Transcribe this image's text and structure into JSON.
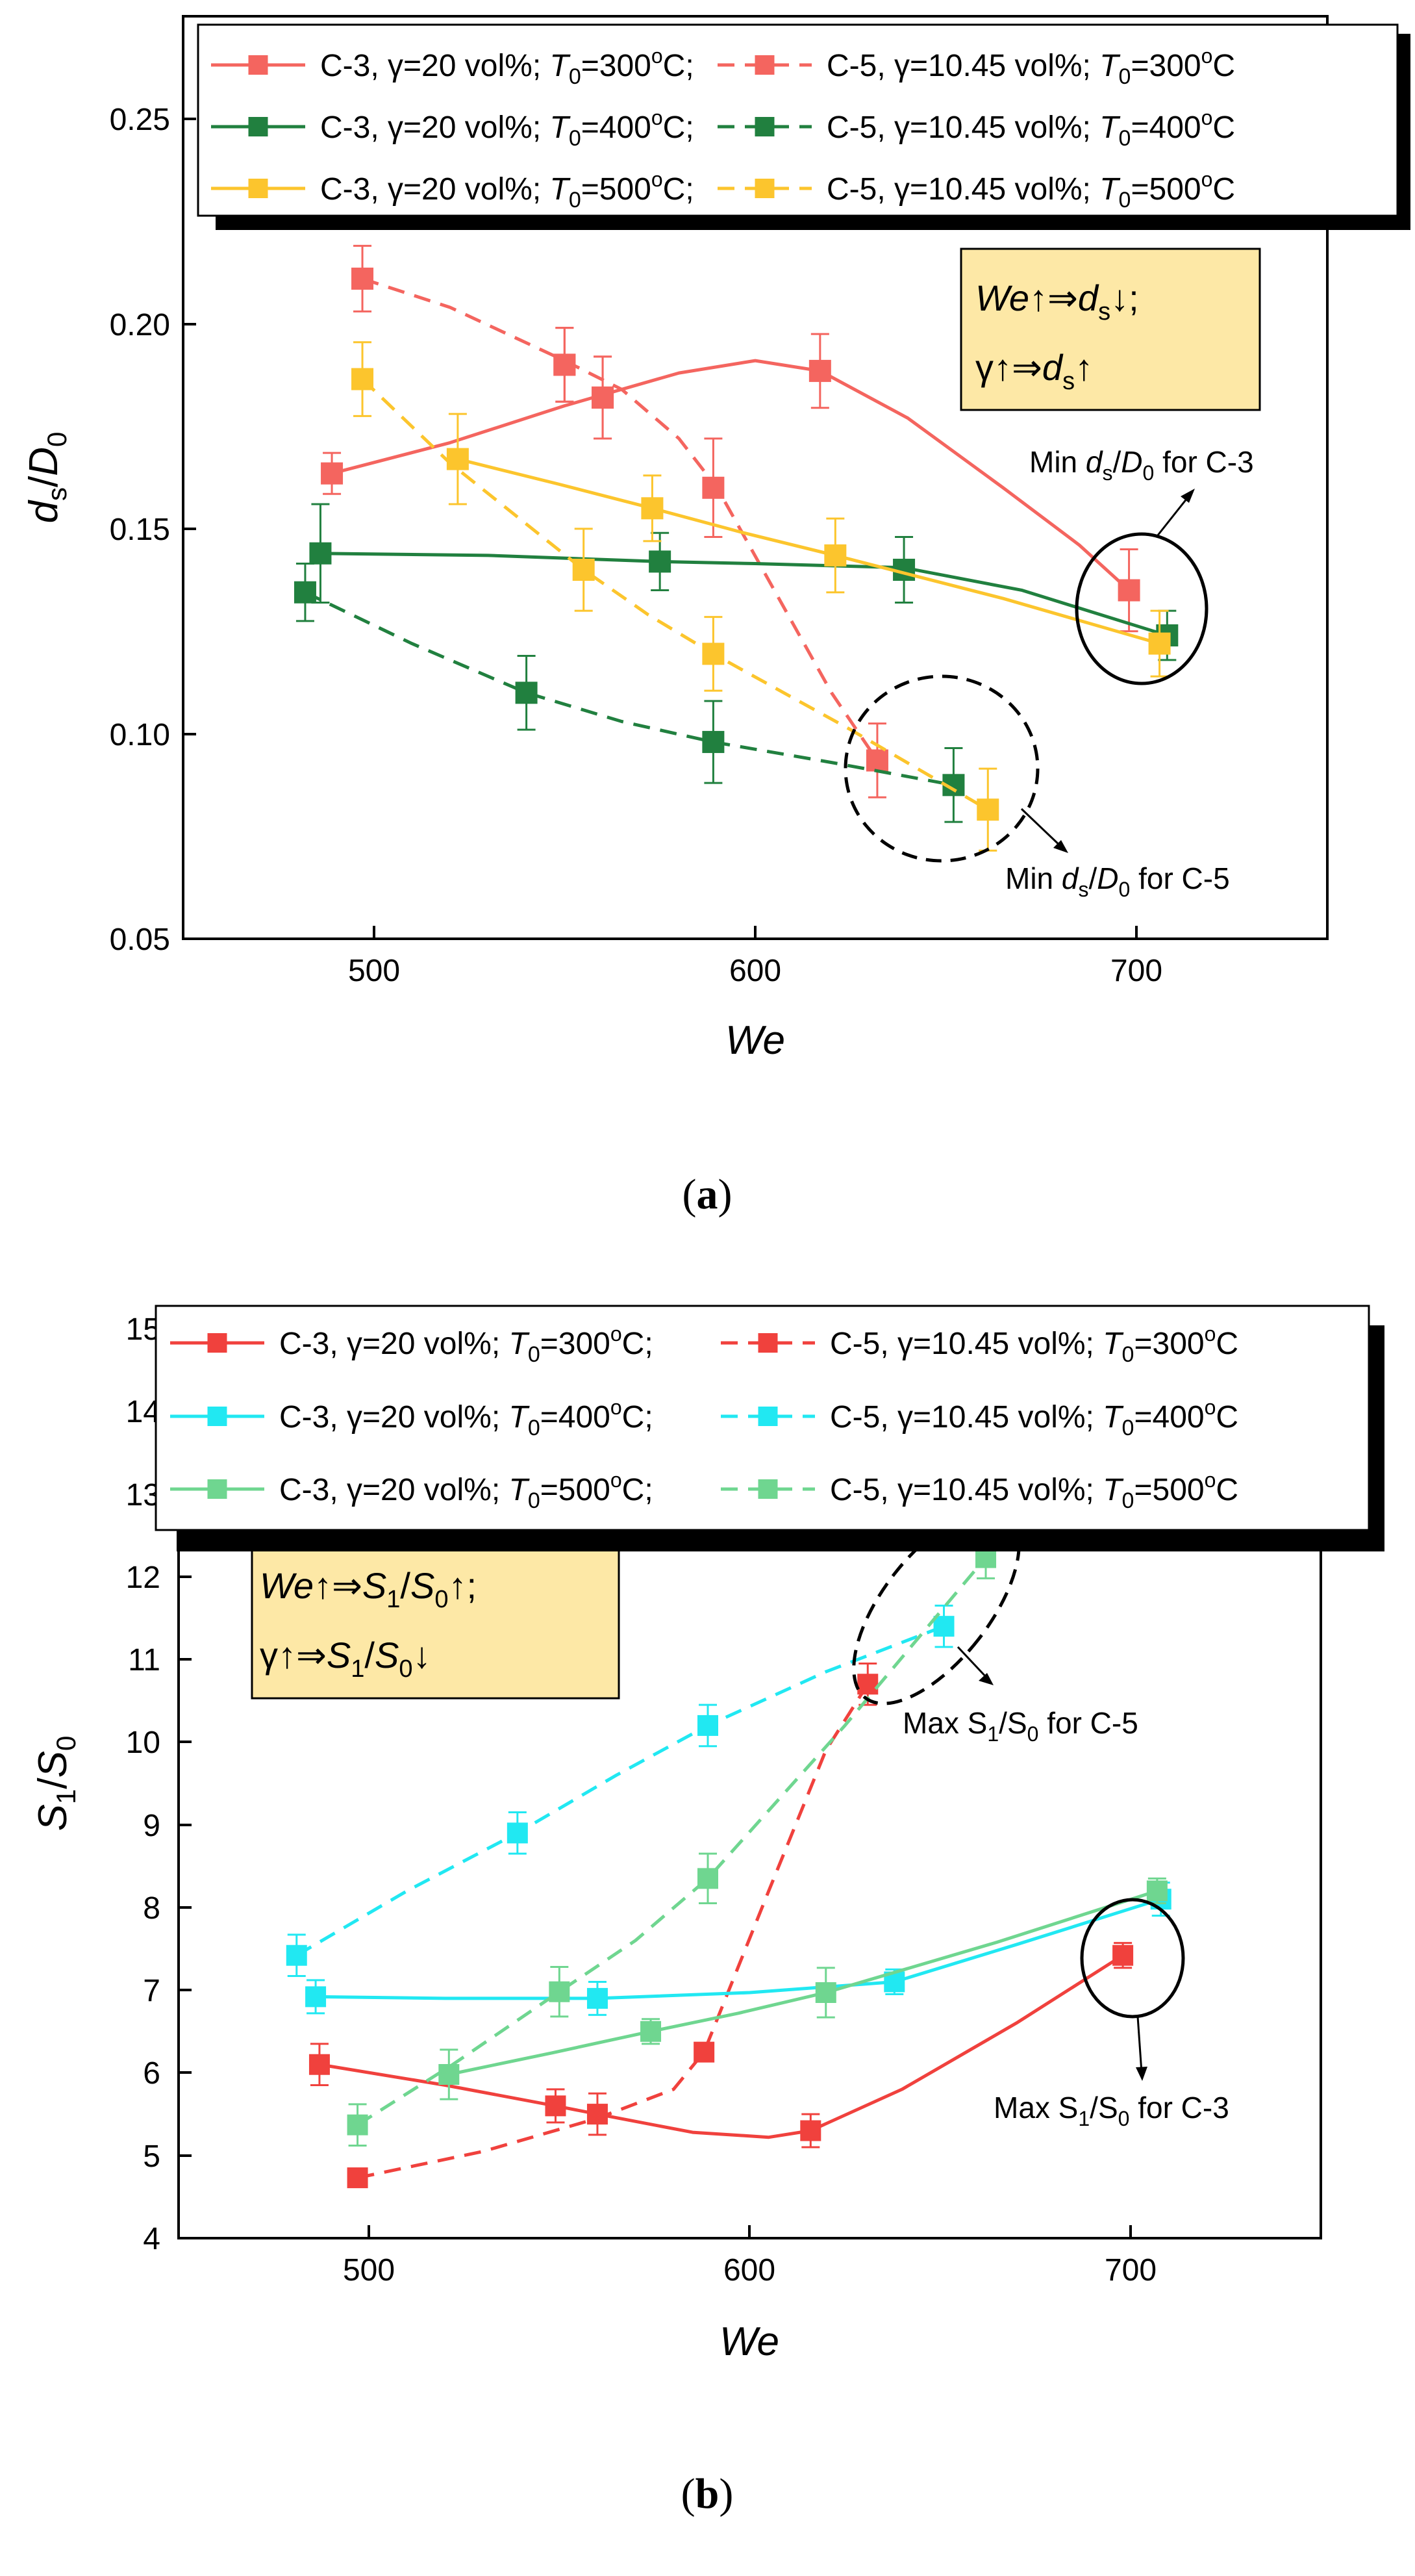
{
  "chart_data": [
    {
      "panel_label": "(a)",
      "type": "line",
      "xlabel": "We",
      "ylabel": "ds/D0",
      "xlim": [
        450,
        750
      ],
      "ylim": [
        0.05,
        0.275
      ],
      "xticks": [
        500,
        600,
        700
      ],
      "yticks": [
        0.05,
        0.1,
        0.15,
        0.2,
        0.25
      ],
      "ytick_labels": [
        "0.05",
        "0.10",
        "0.15",
        "0.20",
        "0.25"
      ],
      "legend_position": "top",
      "series": [
        {
          "name": "C-3, γ=20 vol%; T0=300°C;",
          "label_pre": "C-3, γ=20 vol%; ",
          "label_temp": "=300",
          "label_end": "C;",
          "color": "#f4655f",
          "style": "solid",
          "points": [
            {
              "x": 489,
              "y": 0.1635,
              "err": 0.005
            },
            {
              "x": 550,
              "y": 0.19,
              "err": 0.009
            },
            {
              "x": 560,
              "y": 0.182,
              "err": 0.01
            },
            {
              "x": 617,
              "y": 0.1885,
              "err": 0.009
            },
            {
              "x": 698,
              "y": 0.135,
              "err": 0.01
            }
          ],
          "curve": [
            [
              489,
              0.1635
            ],
            [
              520,
              0.171
            ],
            [
              550,
              0.18
            ],
            [
              580,
              0.188
            ],
            [
              600,
              0.191
            ],
            [
              617,
              0.1885
            ],
            [
              640,
              0.177
            ],
            [
              665,
              0.16
            ],
            [
              685,
              0.146
            ],
            [
              698,
              0.135
            ]
          ]
        },
        {
          "name": "C-5, γ=10.45 vol%; T0=300°C",
          "label_pre": "C-5, γ=10.45 vol%; ",
          "label_temp": "=300",
          "label_end": "C",
          "color": "#f4655f",
          "style": "dashed",
          "points": [
            {
              "x": 497,
              "y": 0.211,
              "err": 0.008
            },
            {
              "x": 550,
              "y": 0.19,
              "err": 0.009
            },
            {
              "x": 560,
              "y": 0.182,
              "err": 0.01
            },
            {
              "x": 589,
              "y": 0.16,
              "err": 0.012
            },
            {
              "x": 632,
              "y": 0.0935,
              "err": 0.009
            }
          ],
          "curve": [
            [
              497,
              0.211
            ],
            [
              520,
              0.204
            ],
            [
              550,
              0.191
            ],
            [
              565,
              0.184
            ],
            [
              580,
              0.172
            ],
            [
              590,
              0.16
            ],
            [
              605,
              0.135
            ],
            [
              620,
              0.11
            ],
            [
              632,
              0.0935
            ]
          ]
        },
        {
          "name": "C-3, γ=20 vol%; T0=400°C;",
          "label_pre": "C-3, γ=20 vol%; ",
          "label_temp": "=400",
          "label_end": "C;",
          "color": "#21803f",
          "style": "solid",
          "points": [
            {
              "x": 486,
              "y": 0.144,
              "err": 0.012
            },
            {
              "x": 575,
              "y": 0.142,
              "err": 0.007
            },
            {
              "x": 639,
              "y": 0.14,
              "err": 0.008
            },
            {
              "x": 708,
              "y": 0.124,
              "err": 0.006
            }
          ],
          "curve": [
            [
              486,
              0.144
            ],
            [
              530,
              0.1435
            ],
            [
              575,
              0.142
            ],
            [
              600,
              0.1415
            ],
            [
              639,
              0.1405
            ],
            [
              670,
              0.135
            ],
            [
              708,
              0.124
            ]
          ]
        },
        {
          "name": "C-5, γ=10.45 vol%; T0=400°C",
          "label_pre": "C-5, γ=10.45 vol%; ",
          "label_temp": "=400",
          "label_end": "C",
          "color": "#21803f",
          "style": "dashed",
          "points": [
            {
              "x": 482,
              "y": 0.1345,
              "err": 0.007
            },
            {
              "x": 540,
              "y": 0.11,
              "err": 0.009
            },
            {
              "x": 589,
              "y": 0.098,
              "err": 0.01
            },
            {
              "x": 652,
              "y": 0.0875,
              "err": 0.009
            }
          ],
          "curve": [
            [
              482,
              0.1345
            ],
            [
              510,
              0.122
            ],
            [
              540,
              0.11
            ],
            [
              565,
              0.103
            ],
            [
              589,
              0.098
            ],
            [
              620,
              0.093
            ],
            [
              652,
              0.0875
            ]
          ]
        },
        {
          "name": "C-3, γ=20 vol%; T0=500°C;",
          "label_pre": "C-3, γ=20 vol%; ",
          "label_temp": "=500",
          "label_end": "C;",
          "color": "#fcc52d",
          "style": "solid",
          "points": [
            {
              "x": 522,
              "y": 0.167,
              "err": 0.011
            },
            {
              "x": 573,
              "y": 0.155,
              "err": 0.008
            },
            {
              "x": 621,
              "y": 0.1435,
              "err": 0.009
            },
            {
              "x": 706,
              "y": 0.122,
              "err": 0.008
            }
          ],
          "curve": [
            [
              522,
              0.167
            ],
            [
              548,
              0.161
            ],
            [
              573,
              0.155
            ],
            [
              597,
              0.149
            ],
            [
              621,
              0.1435
            ],
            [
              665,
              0.133
            ],
            [
              706,
              0.122
            ]
          ]
        },
        {
          "name": "C-5, γ=10.45 vol%; T0=500°C",
          "label_pre": "C-5, γ=10.45 vol%; ",
          "label_temp": "=500",
          "label_end": "C",
          "color": "#fcc52d",
          "style": "dashed",
          "points": [
            {
              "x": 497,
              "y": 0.1865,
              "err": 0.009
            },
            {
              "x": 555,
              "y": 0.14,
              "err": 0.01
            },
            {
              "x": 589,
              "y": 0.1195,
              "err": 0.009
            },
            {
              "x": 661,
              "y": 0.0815,
              "err": 0.01
            }
          ],
          "curve": [
            [
              497,
              0.1865
            ],
            [
              520,
              0.166
            ],
            [
              555,
              0.14
            ],
            [
              572,
              0.129
            ],
            [
              589,
              0.1195
            ],
            [
              625,
              0.101
            ],
            [
              661,
              0.0815
            ]
          ]
        }
      ],
      "annotation_box": {
        "line1_var": "We",
        "line1_sym": "↑⇒",
        "line1_var2": "d",
        "line1_sub": "s",
        "line1_end": "↓;",
        "line2_pre": "γ↑⇒",
        "line2_var": "d",
        "line2_sub": "s",
        "line2_end": "↑"
      },
      "annotations": [
        {
          "text_pre": "Min ",
          "var1": "d",
          "sub1": "s",
          "slash": "/",
          "var2": "D",
          "sub2": "0",
          "text_post": " for C-3"
        },
        {
          "text_pre": "Min ",
          "var1": "d",
          "sub1": "s",
          "slash": "/",
          "var2": "D",
          "sub2": "0",
          "text_post": " for C-5"
        }
      ]
    },
    {
      "panel_label": "(b)",
      "type": "line",
      "xlabel": "We",
      "ylabel": "S1/S0",
      "xlim": [
        450,
        750
      ],
      "ylim": [
        4,
        15
      ],
      "xticks": [
        500,
        600,
        700
      ],
      "yticks": [
        4,
        5,
        6,
        7,
        8,
        9,
        10,
        11,
        12,
        13,
        14,
        15
      ],
      "legend_position": "top",
      "series": [
        {
          "name": "C-3, γ=20 vol%; T0=300°C;",
          "label_pre": "C-3, γ=20 vol%; ",
          "label_temp": "=300",
          "label_end": "C;",
          "color": "#f0413d",
          "style": "solid",
          "points": [
            {
              "x": 487,
              "y": 6.1,
              "err": 0.25
            },
            {
              "x": 549,
              "y": 5.6,
              "err": 0.2
            },
            {
              "x": 560,
              "y": 5.5,
              "err": 0.25
            },
            {
              "x": 616,
              "y": 5.3,
              "err": 0.2
            },
            {
              "x": 698,
              "y": 7.42,
              "err": 0.15
            }
          ],
          "curve": [
            [
              487,
              6.1
            ],
            [
              520,
              5.85
            ],
            [
              549,
              5.6
            ],
            [
              560,
              5.5
            ],
            [
              585,
              5.28
            ],
            [
              605,
              5.22
            ],
            [
              616,
              5.3
            ],
            [
              640,
              5.8
            ],
            [
              670,
              6.6
            ],
            [
              698,
              7.42
            ]
          ]
        },
        {
          "name": "C-5, γ=10.45 vol%; T0=300°C",
          "label_pre": "C-5, γ=10.45 vol%; ",
          "label_temp": "=300",
          "label_end": "C",
          "color": "#f0413d",
          "style": "dashed",
          "points": [
            {
              "x": 497,
              "y": 4.73,
              "err": 0.1
            },
            {
              "x": 588,
              "y": 6.25,
              "err": 0.1
            },
            {
              "x": 631,
              "y": 10.7,
              "err": 0.25
            }
          ],
          "curve": [
            [
              497,
              4.73
            ],
            [
              530,
              5.05
            ],
            [
              560,
              5.45
            ],
            [
              580,
              5.8
            ],
            [
              588,
              6.25
            ],
            [
              605,
              8.2
            ],
            [
              620,
              9.9
            ],
            [
              631,
              10.7
            ]
          ]
        },
        {
          "name": "C-3, γ=20 vol%; T0=400°C;",
          "label_pre": "C-3, γ=20 vol%; ",
          "label_temp": "=400",
          "label_end": "C;",
          "color": "#21e8f2",
          "style": "solid",
          "points": [
            {
              "x": 486,
              "y": 6.92,
              "err": 0.2
            },
            {
              "x": 560,
              "y": 6.9,
              "err": 0.2
            },
            {
              "x": 638,
              "y": 7.1,
              "err": 0.15
            },
            {
              "x": 708,
              "y": 8.1,
              "err": 0.2
            }
          ],
          "curve": [
            [
              486,
              6.92
            ],
            [
              520,
              6.9
            ],
            [
              560,
              6.9
            ],
            [
              600,
              6.97
            ],
            [
              638,
              7.1
            ],
            [
              670,
              7.55
            ],
            [
              708,
              8.1
            ]
          ]
        },
        {
          "name": "C-5, γ=10.45 vol%; T0=400°C",
          "label_pre": "C-5, γ=10.45 vol%; ",
          "label_temp": "=400",
          "label_end": "C",
          "color": "#21e8f2",
          "style": "dashed",
          "points": [
            {
              "x": 481,
              "y": 7.42,
              "err": 0.25
            },
            {
              "x": 539,
              "y": 8.9,
              "err": 0.25
            },
            {
              "x": 589,
              "y": 10.2,
              "err": 0.25
            },
            {
              "x": 651,
              "y": 11.4,
              "err": 0.25
            }
          ],
          "curve": [
            [
              481,
              7.42
            ],
            [
              510,
              8.2
            ],
            [
              539,
              8.9
            ],
            [
              565,
              9.6
            ],
            [
              589,
              10.2
            ],
            [
              620,
              10.85
            ],
            [
              651,
              11.4
            ]
          ]
        },
        {
          "name": "C-3, γ=20 vol%; T0=500°C;",
          "label_pre": "C-3, γ=20 vol%; ",
          "label_temp": "=500",
          "label_end": "C;",
          "color": "#6fd690",
          "style": "solid",
          "points": [
            {
              "x": 521,
              "y": 5.98,
              "err": 0.3
            },
            {
              "x": 574,
              "y": 6.5,
              "err": 0.15
            },
            {
              "x": 620,
              "y": 6.97,
              "err": 0.3
            },
            {
              "x": 707,
              "y": 8.2,
              "err": 0.15
            }
          ],
          "curve": [
            [
              521,
              5.98
            ],
            [
              548,
              6.24
            ],
            [
              574,
              6.5
            ],
            [
              597,
              6.72
            ],
            [
              620,
              6.97
            ],
            [
              665,
              7.58
            ],
            [
              707,
              8.2
            ]
          ]
        },
        {
          "name": "C-5, γ=10.45 vol%; T0=500°C",
          "label_pre": "C-5, γ=10.45 vol%; ",
          "label_temp": "=500",
          "label_end": "C",
          "color": "#6fd690",
          "style": "dashed",
          "points": [
            {
              "x": 497,
              "y": 5.37,
              "err": 0.25
            },
            {
              "x": 550,
              "y": 6.98,
              "err": 0.3
            },
            {
              "x": 589,
              "y": 8.35,
              "err": 0.3
            },
            {
              "x": 662,
              "y": 12.23,
              "err": 0.25
            }
          ],
          "curve": [
            [
              497,
              5.37
            ],
            [
              522,
              6.1
            ],
            [
              550,
              6.98
            ],
            [
              570,
              7.6
            ],
            [
              589,
              8.35
            ],
            [
              625,
              10.2
            ],
            [
              662,
              12.23
            ]
          ]
        }
      ],
      "annotation_box": {
        "line1_var": "We",
        "line1_sym": "↑⇒",
        "line1_var2": "S",
        "line1_sub": "1",
        "line1_slash": "/",
        "line1_var3": "S",
        "line1_sub2": "0",
        "line1_end": "↑;",
        "line2_pre": "γ↑⇒",
        "line2_var": "S",
        "line2_sub": "1",
        "line2_slash": "/",
        "line2_var2": "S",
        "line2_sub2": "0",
        "line2_end": "↓"
      },
      "annotations": [
        {
          "text_pre": "Max S",
          "sub1": "1",
          "mid": "/S",
          "sub2": "0",
          "text_post": " for C-5"
        },
        {
          "text_pre": "Max S",
          "sub1": "1",
          "mid": "/S",
          "sub2": "0",
          "text_post": " for C-3"
        }
      ]
    }
  ],
  "labels": {
    "panel_a": {
      "open": "(",
      "letter": "a",
      "close": ")",
      "xlabel": "We",
      "ylabel_var": "d",
      "ylabel_sub": "s",
      "ylabel_slash": "/",
      "ylabel_var2": "D",
      "ylabel_sub2": "0",
      "xtick_labels": [
        "500",
        "600",
        "700"
      ]
    },
    "panel_b": {
      "open": "(",
      "letter": "b",
      "close": ")",
      "xlabel": "We",
      "ylabel_var": "S",
      "ylabel_sub": "1",
      "ylabel_slash": "/",
      "ylabel_var2": "S",
      "ylabel_sub2": "0",
      "xtick_labels": [
        "500",
        "600",
        "700"
      ],
      "ytick_labels": [
        "4",
        "5",
        "6",
        "7",
        "8",
        "9",
        "10",
        "11",
        "12",
        "13",
        "14",
        "15"
      ]
    },
    "legend_temp_var": "T",
    "legend_temp_sub": "0",
    "legend_degree": "o"
  }
}
